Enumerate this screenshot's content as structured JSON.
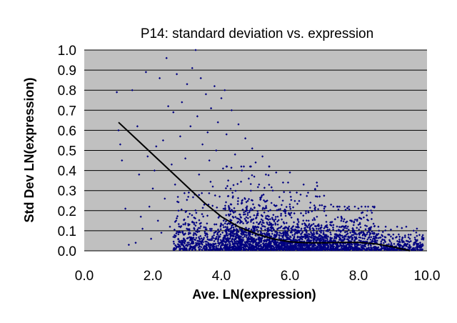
{
  "chart_data": {
    "type": "scatter",
    "title": "P14: standard deviation vs. expression",
    "xlabel": "Ave. LN(expression)",
    "ylabel": "Std Dev LN(expression)",
    "xlim": [
      0.0,
      10.0
    ],
    "ylim": [
      0.0,
      1.0
    ],
    "x_ticks": [
      "0.0",
      "2.0",
      "4.0",
      "6.0",
      "8.0",
      "10.0"
    ],
    "y_ticks": [
      "0.0",
      "0.1",
      "0.2",
      "0.3",
      "0.4",
      "0.5",
      "0.6",
      "0.7",
      "0.8",
      "0.9",
      "1.0"
    ],
    "grid": "horizontal",
    "legend": "none",
    "colors": {
      "plot_background": "#c0c0c0",
      "points": "#000080",
      "trend_line": "#000000",
      "gridlines": "#000000"
    },
    "series": [
      {
        "kind": "points",
        "points": [
          [
            0.95,
            0.79
          ],
          [
            1.0,
            0.6
          ],
          [
            1.05,
            0.53
          ],
          [
            1.1,
            0.45
          ],
          [
            1.2,
            0.21
          ],
          [
            1.3,
            0.03
          ],
          [
            1.4,
            0.8
          ],
          [
            1.5,
            0.04
          ],
          [
            1.55,
            0.62
          ],
          [
            1.6,
            0.38
          ],
          [
            1.65,
            0.17
          ],
          [
            1.7,
            0.11
          ],
          [
            1.8,
            0.89
          ],
          [
            1.85,
            0.47
          ],
          [
            1.9,
            0.22
          ],
          [
            1.95,
            0.06
          ],
          [
            2.0,
            0.31
          ],
          [
            2.05,
            0.4
          ],
          [
            2.1,
            0.52
          ],
          [
            2.15,
            0.15
          ],
          [
            2.2,
            0.86
          ],
          [
            2.25,
            0.09
          ],
          [
            2.3,
            0.55
          ],
          [
            2.35,
            0.26
          ],
          [
            2.4,
            0.96
          ],
          [
            2.45,
            0.72
          ],
          [
            2.5,
            0.12
          ],
          [
            2.55,
            0.43
          ],
          [
            2.6,
            0.69
          ],
          [
            2.65,
            0.33
          ],
          [
            2.7,
            0.88
          ],
          [
            2.75,
            0.2
          ],
          [
            2.8,
            0.57
          ],
          [
            2.85,
            0.74
          ],
          [
            2.9,
            0.08
          ],
          [
            2.95,
            0.46
          ],
          [
            3.0,
            0.83
          ],
          [
            3.05,
            0.29
          ],
          [
            3.1,
            0.62
          ],
          [
            3.15,
            0.91
          ],
          [
            3.2,
            0.14
          ],
          [
            3.25,
            1.0
          ],
          [
            3.3,
            0.67
          ],
          [
            3.35,
            0.38
          ],
          [
            3.4,
            0.86
          ],
          [
            3.45,
            0.53
          ],
          [
            3.5,
            0.23
          ],
          [
            3.55,
            0.78
          ],
          [
            3.6,
            0.59
          ],
          [
            3.65,
            0.45
          ],
          [
            3.7,
            0.71
          ],
          [
            3.75,
            0.32
          ],
          [
            3.8,
            0.82
          ],
          [
            3.85,
            0.5
          ],
          [
            3.9,
            0.64
          ],
          [
            3.95,
            0.27
          ],
          [
            4.0,
            0.76
          ],
          [
            4.05,
            0.41
          ],
          [
            4.1,
            0.8
          ],
          [
            4.15,
            0.58
          ],
          [
            4.2,
            0.35
          ],
          [
            4.3,
            0.7
          ],
          [
            4.4,
            0.48
          ],
          [
            4.5,
            0.63
          ],
          [
            4.6,
            0.4
          ],
          [
            4.7,
            0.56
          ],
          [
            4.8,
            0.36
          ],
          [
            4.9,
            0.51
          ],
          [
            5.0,
            0.44
          ],
          [
            5.1,
            0.33
          ],
          [
            5.2,
            0.47
          ],
          [
            5.3,
            0.38
          ],
          [
            5.4,
            0.42
          ],
          [
            5.5,
            0.3
          ],
          [
            5.6,
            0.39
          ],
          [
            5.8,
            0.34
          ],
          [
            6.0,
            0.39
          ],
          [
            6.2,
            0.29
          ],
          [
            6.4,
            0.33
          ],
          [
            6.6,
            0.24
          ],
          [
            6.8,
            0.27
          ],
          [
            7.0,
            0.21
          ],
          [
            7.2,
            0.23
          ],
          [
            7.5,
            0.17
          ],
          [
            7.8,
            0.15
          ],
          [
            8.0,
            0.13
          ],
          [
            8.3,
            0.11
          ],
          [
            8.6,
            0.1
          ],
          [
            8.9,
            0.08
          ],
          [
            9.2,
            0.07
          ],
          [
            9.5,
            0.06
          ],
          [
            9.8,
            0.04
          ]
        ]
      },
      {
        "kind": "trend",
        "points": [
          [
            1.0,
            0.64
          ],
          [
            1.5,
            0.56
          ],
          [
            2.0,
            0.48
          ],
          [
            2.5,
            0.4
          ],
          [
            3.0,
            0.32
          ],
          [
            3.5,
            0.24
          ],
          [
            4.0,
            0.17
          ],
          [
            4.5,
            0.12
          ],
          [
            5.0,
            0.085
          ],
          [
            5.5,
            0.06
          ],
          [
            6.0,
            0.045
          ],
          [
            6.5,
            0.04
          ],
          [
            7.0,
            0.04
          ],
          [
            7.5,
            0.042
          ],
          [
            8.0,
            0.042
          ],
          [
            8.5,
            0.035
          ],
          [
            9.0,
            0.02
          ],
          [
            9.5,
            0.0
          ]
        ]
      }
    ],
    "density_bands": [
      {
        "x_range": [
          2.6,
          4.1
        ],
        "center": 0.06,
        "max": 0.55,
        "count": 420
      },
      {
        "x_range": [
          4.1,
          5.5
        ],
        "center": 0.07,
        "max": 0.42,
        "count": 900
      },
      {
        "x_range": [
          5.5,
          7.0
        ],
        "center": 0.06,
        "max": 0.34,
        "count": 850
      },
      {
        "x_range": [
          7.0,
          8.5
        ],
        "center": 0.05,
        "max": 0.22,
        "count": 600
      },
      {
        "x_range": [
          8.5,
          9.9
        ],
        "center": 0.03,
        "max": 0.12,
        "count": 280
      }
    ]
  }
}
